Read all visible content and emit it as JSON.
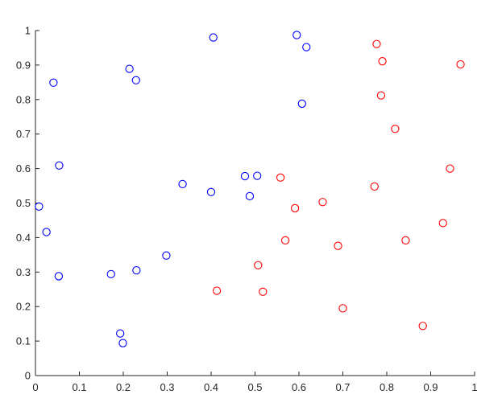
{
  "chart_data": {
    "type": "scatter",
    "title": "",
    "xlabel": "",
    "ylabel": "",
    "xlim": [
      0,
      1
    ],
    "ylim": [
      0,
      1
    ],
    "xticks": [
      "0",
      "0.1",
      "0.2",
      "0.3",
      "0.4",
      "0.5",
      "0.6",
      "0.7",
      "0.8",
      "0.9",
      "1"
    ],
    "yticks": [
      "0",
      "0.1",
      "0.2",
      "0.3",
      "0.4",
      "0.5",
      "0.6",
      "0.7",
      "0.8",
      "0.9",
      "1"
    ],
    "grid": false,
    "legend": "none",
    "series": [
      {
        "color": "#0000ff",
        "marker": "open-circle",
        "points": [
          [
            0.405,
            0.98
          ],
          [
            0.595,
            0.987
          ],
          [
            0.617,
            0.952
          ],
          [
            0.214,
            0.889
          ],
          [
            0.229,
            0.856
          ],
          [
            0.041,
            0.849
          ],
          [
            0.607,
            0.788
          ],
          [
            0.054,
            0.609
          ],
          [
            0.335,
            0.555
          ],
          [
            0.4,
            0.532
          ],
          [
            0.477,
            0.578
          ],
          [
            0.505,
            0.579
          ],
          [
            0.488,
            0.52
          ],
          [
            0.008,
            0.49
          ],
          [
            0.025,
            0.416
          ],
          [
            0.298,
            0.348
          ],
          [
            0.053,
            0.288
          ],
          [
            0.172,
            0.294
          ],
          [
            0.23,
            0.305
          ],
          [
            0.193,
            0.122
          ],
          [
            0.199,
            0.094
          ]
        ]
      },
      {
        "color": "#ff0000",
        "marker": "open-circle",
        "points": [
          [
            0.777,
            0.961
          ],
          [
            0.79,
            0.911
          ],
          [
            0.968,
            0.902
          ],
          [
            0.787,
            0.812
          ],
          [
            0.819,
            0.715
          ],
          [
            0.944,
            0.6
          ],
          [
            0.558,
            0.574
          ],
          [
            0.772,
            0.548
          ],
          [
            0.654,
            0.503
          ],
          [
            0.591,
            0.485
          ],
          [
            0.928,
            0.442
          ],
          [
            0.569,
            0.392
          ],
          [
            0.843,
            0.392
          ],
          [
            0.689,
            0.376
          ],
          [
            0.507,
            0.32
          ],
          [
            0.413,
            0.246
          ],
          [
            0.518,
            0.243
          ],
          [
            0.7,
            0.195
          ],
          [
            0.882,
            0.144
          ]
        ]
      }
    ]
  }
}
